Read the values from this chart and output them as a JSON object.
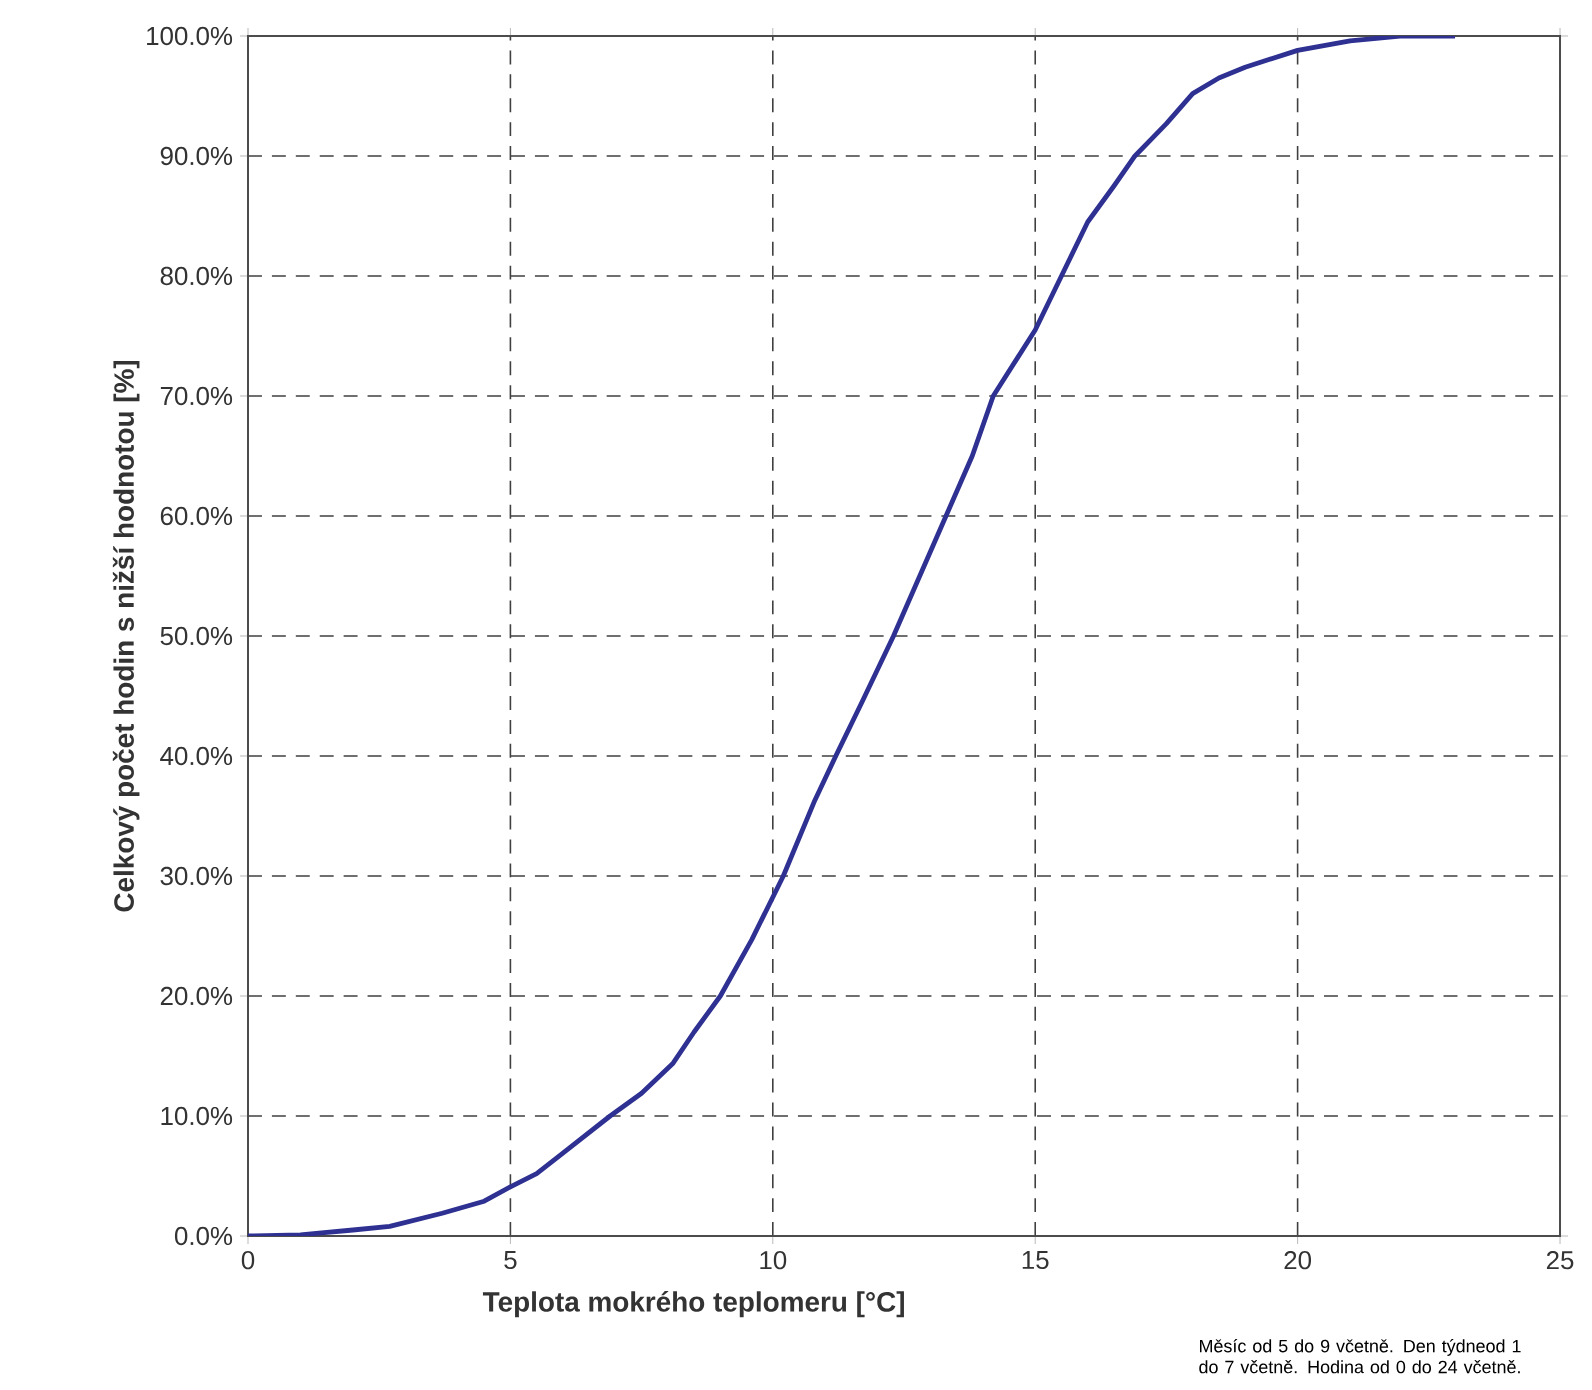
{
  "chart_data": {
    "type": "line",
    "xlabel": "Teplota mokrého teplomeru [°C]",
    "ylabel": "Celkový počet hodin s nižší hodnotou [%]",
    "annotations": [
      "Měsíc od 5 do 9 včetně. Den týdneod 1 do 7 včetně. Hodina od 0 do 24 včetně."
    ],
    "xlim": [
      0,
      25
    ],
    "xticks": [
      0,
      5,
      10,
      15,
      20,
      25
    ],
    "ylim": [
      0,
      100
    ],
    "yticks": [
      {
        "value": 0,
        "label": "0.0%"
      },
      {
        "value": 10,
        "label": "10.0%"
      },
      {
        "value": 20,
        "label": "20.0%"
      },
      {
        "value": 30,
        "label": "30.0%"
      },
      {
        "value": 40,
        "label": "40.0%"
      },
      {
        "value": 50,
        "label": "50.0%"
      },
      {
        "value": 60,
        "label": "60.0%"
      },
      {
        "value": 70,
        "label": "70.0%"
      },
      {
        "value": 80,
        "label": "80.0%"
      },
      {
        "value": 90,
        "label": "90.0%"
      },
      {
        "value": 100,
        "label": "100.0%"
      }
    ],
    "grid": true,
    "marker": "none",
    "line_style": "solid",
    "series": [
      {
        "color": "#2e3192",
        "x": [
          0,
          1,
          2,
          2.7,
          3.7,
          4.5,
          5,
          5.5,
          6,
          6.9,
          7.5,
          8.1,
          8.5,
          9,
          9.6,
          10.2,
          10.8,
          11.2,
          11.7,
          12.3,
          12.8,
          13.3,
          13.8,
          14.2,
          15,
          15.5,
          16,
          16.5,
          16.9,
          17.5,
          18,
          18.5,
          19,
          20,
          21,
          22,
          23
        ],
        "values": [
          0,
          0.1,
          0.5,
          0.8,
          1.9,
          2.9,
          4.1,
          5.2,
          6.9,
          10,
          11.9,
          14.4,
          17,
          20,
          24.7,
          30,
          36.3,
          40,
          44.5,
          50,
          55,
          60,
          65,
          70,
          75.5,
          80,
          84.5,
          87.5,
          90,
          92.7,
          95.2,
          96.5,
          97.4,
          98.8,
          99.6,
          100,
          100
        ]
      }
    ]
  }
}
